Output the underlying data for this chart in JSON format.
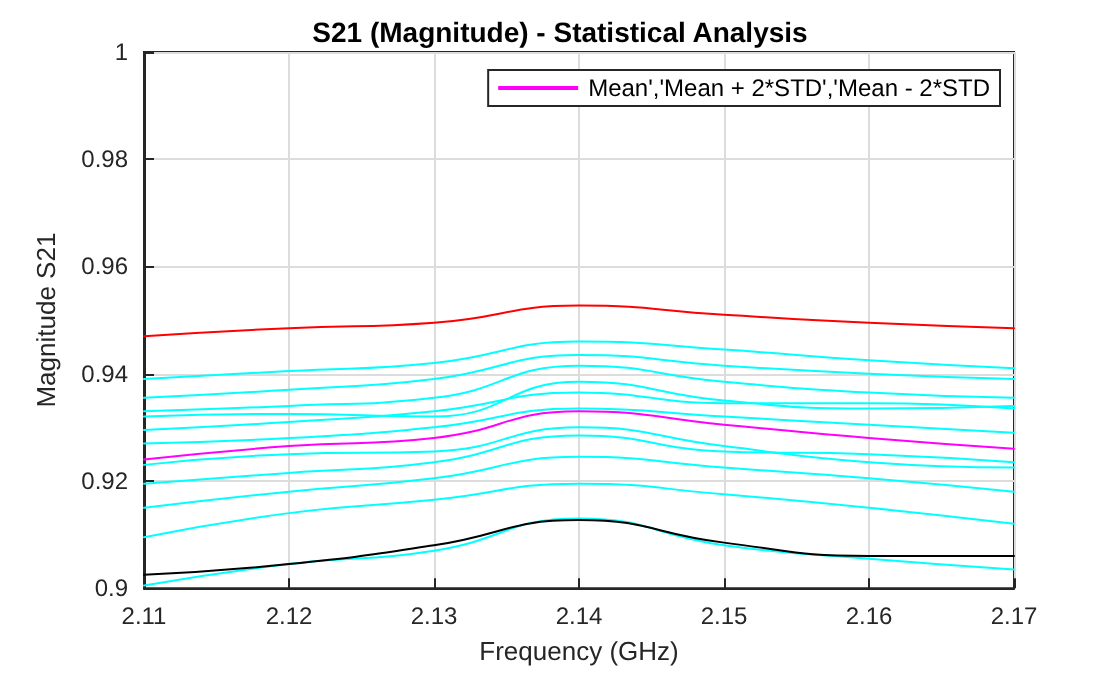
{
  "chart_data": {
    "type": "line",
    "title": "S21 (Magnitude) - Statistical Analysis",
    "xlabel": "Frequency (GHz)",
    "ylabel": "Magnitude S21",
    "x": [
      2.11,
      2.12,
      2.13,
      2.14,
      2.15,
      2.16,
      2.17
    ],
    "xlim": [
      2.11,
      2.17
    ],
    "xticks": [
      2.11,
      2.12,
      2.13,
      2.14,
      2.15,
      2.16,
      2.17
    ],
    "ylim": [
      0.9,
      1
    ],
    "yticks": [
      0.9,
      0.92,
      0.94,
      0.96,
      0.98,
      1
    ],
    "grid": true,
    "legend": "top right",
    "marker": "none",
    "line_style": "solid",
    "series": [
      {
        "color": "#00ffff",
        "values": [
          0.939,
          0.9405,
          0.942,
          0.946,
          0.9445,
          0.9425,
          0.941
        ]
      },
      {
        "color": "#00ffff",
        "values": [
          0.9355,
          0.937,
          0.939,
          0.9435,
          0.9415,
          0.94,
          0.939
        ]
      },
      {
        "color": "#00ffff",
        "values": [
          0.933,
          0.934,
          0.9355,
          0.9415,
          0.9385,
          0.9365,
          0.9355
        ]
      },
      {
        "color": "#00ffff",
        "values": [
          0.932,
          0.9325,
          0.932,
          0.9385,
          0.935,
          0.9335,
          0.934
        ]
      },
      {
        "color": "#00ffff",
        "values": [
          0.9295,
          0.931,
          0.933,
          0.9365,
          0.9345,
          0.9345,
          0.9335
        ]
      },
      {
        "color": "#00ffff",
        "values": [
          0.927,
          0.928,
          0.93,
          0.9335,
          0.932,
          0.9305,
          0.929
        ]
      },
      {
        "color": "#00ffff",
        "values": [
          0.923,
          0.925,
          0.9255,
          0.93,
          0.9265,
          0.9235,
          0.9225
        ]
      },
      {
        "color": "#00ffff",
        "values": [
          0.9195,
          0.9215,
          0.9235,
          0.9285,
          0.9255,
          0.925,
          0.9235
        ]
      },
      {
        "color": "#00ffff",
        "values": [
          0.915,
          0.918,
          0.9205,
          0.9245,
          0.9225,
          0.9205,
          0.918
        ]
      },
      {
        "color": "#00ffff",
        "values": [
          0.9095,
          0.914,
          0.9165,
          0.9195,
          0.9175,
          0.915,
          0.912
        ]
      },
      {
        "color": "#00ffff",
        "values": [
          0.9005,
          0.9045,
          0.907,
          0.913,
          0.908,
          0.9055,
          0.9035
        ]
      },
      {
        "name": "Mean','Mean + 2*STD','Mean - 2*STD",
        "color": "#ff00ff",
        "values": [
          0.924,
          0.9265,
          0.928,
          0.933,
          0.9305,
          0.928,
          0.926
        ]
      },
      {
        "color": "#ff0000",
        "values": [
          0.947,
          0.9485,
          0.9495,
          0.9527,
          0.951,
          0.9495,
          0.9485
        ]
      },
      {
        "color": "#000000",
        "values": [
          0.9025,
          0.9045,
          0.908,
          0.9127,
          0.9085,
          0.906,
          0.906
        ]
      }
    ]
  }
}
